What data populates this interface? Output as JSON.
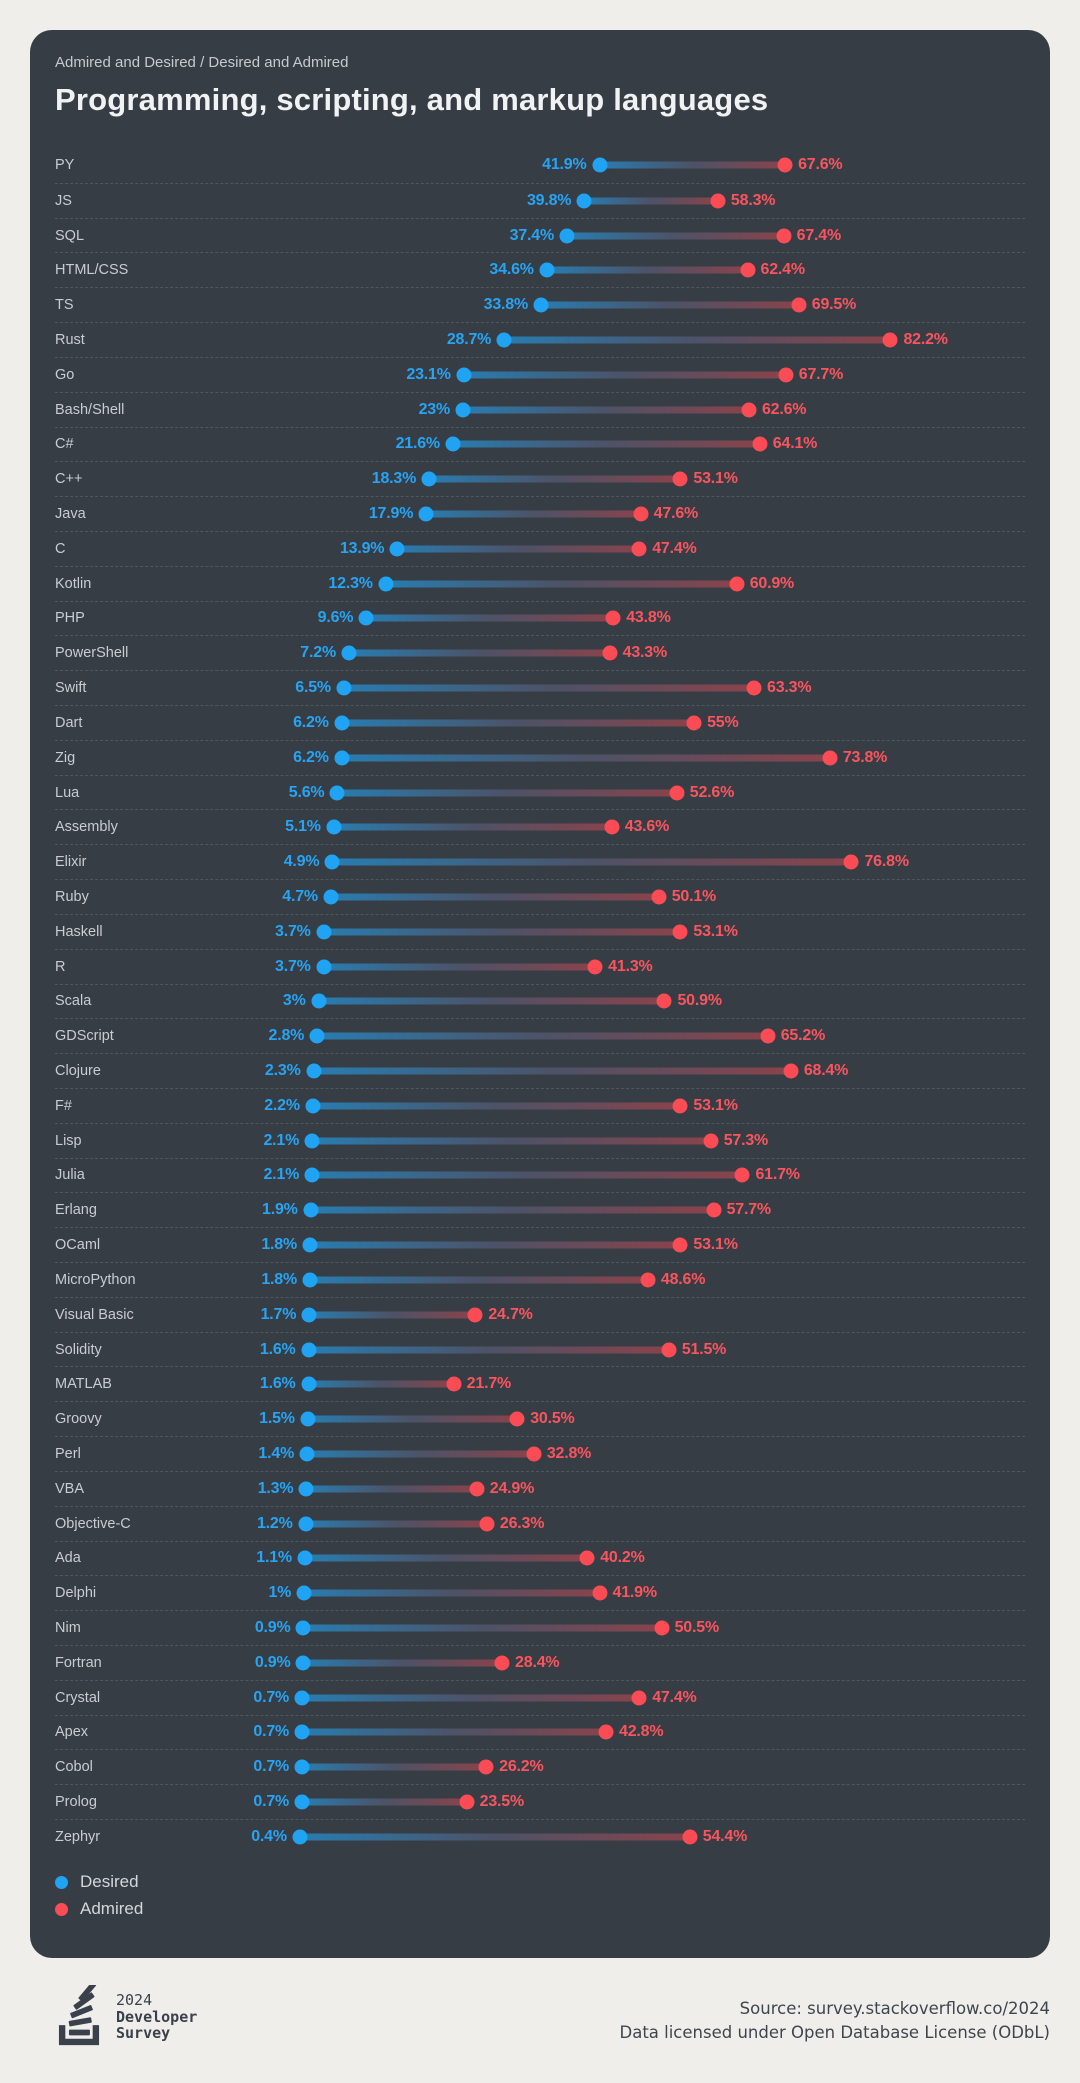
{
  "header": {
    "subtitle": "Admired and Desired / Desired and Admired",
    "title": "Programming, scripting, and markup languages"
  },
  "legend": [
    {
      "label": "Desired",
      "color": "#1fa3f2"
    },
    {
      "label": "Admired",
      "color": "#fb4b54"
    }
  ],
  "chart_data": {
    "type": "dumbbell",
    "title": "Programming, scripting, and markup languages",
    "subtitle": "Admired and Desired / Desired and Admired",
    "value_unit": "%",
    "xlim": [
      0,
      90
    ],
    "grid": "dashed row separators",
    "legend_position": "bottom-left",
    "series": [
      {
        "name": "Desired",
        "color": "#1fa3f2"
      },
      {
        "name": "Admired",
        "color": "#fb4b54"
      }
    ],
    "rows": [
      {
        "label": "PY",
        "desired": 41.9,
        "admired": 67.6,
        "desired_label": "41.9%",
        "admired_label": "67.6%"
      },
      {
        "label": "JS",
        "desired": 39.8,
        "admired": 58.3,
        "desired_label": "39.8%",
        "admired_label": "58.3%"
      },
      {
        "label": "SQL",
        "desired": 37.4,
        "admired": 67.4,
        "desired_label": "37.4%",
        "admired_label": "67.4%"
      },
      {
        "label": "HTML/CSS",
        "desired": 34.6,
        "admired": 62.4,
        "desired_label": "34.6%",
        "admired_label": "62.4%"
      },
      {
        "label": "TS",
        "desired": 33.8,
        "admired": 69.5,
        "desired_label": "33.8%",
        "admired_label": "69.5%"
      },
      {
        "label": "Rust",
        "desired": 28.7,
        "admired": 82.2,
        "desired_label": "28.7%",
        "admired_label": "82.2%"
      },
      {
        "label": "Go",
        "desired": 23.1,
        "admired": 67.7,
        "desired_label": "23.1%",
        "admired_label": "67.7%"
      },
      {
        "label": "Bash/Shell",
        "desired": 23.0,
        "admired": 62.6,
        "desired_label": "23%",
        "admired_label": "62.6%"
      },
      {
        "label": "C#",
        "desired": 21.6,
        "admired": 64.1,
        "desired_label": "21.6%",
        "admired_label": "64.1%"
      },
      {
        "label": "C++",
        "desired": 18.3,
        "admired": 53.1,
        "desired_label": "18.3%",
        "admired_label": "53.1%"
      },
      {
        "label": "Java",
        "desired": 17.9,
        "admired": 47.6,
        "desired_label": "17.9%",
        "admired_label": "47.6%"
      },
      {
        "label": "C",
        "desired": 13.9,
        "admired": 47.4,
        "desired_label": "13.9%",
        "admired_label": "47.4%"
      },
      {
        "label": "Kotlin",
        "desired": 12.3,
        "admired": 60.9,
        "desired_label": "12.3%",
        "admired_label": "60.9%"
      },
      {
        "label": "PHP",
        "desired": 9.6,
        "admired": 43.8,
        "desired_label": "9.6%",
        "admired_label": "43.8%"
      },
      {
        "label": "PowerShell",
        "desired": 7.2,
        "admired": 43.3,
        "desired_label": "7.2%",
        "admired_label": "43.3%"
      },
      {
        "label": "Swift",
        "desired": 6.5,
        "admired": 63.3,
        "desired_label": "6.5%",
        "admired_label": "63.3%"
      },
      {
        "label": "Dart",
        "desired": 6.2,
        "admired": 55.0,
        "desired_label": "6.2%",
        "admired_label": "55%"
      },
      {
        "label": "Zig",
        "desired": 6.2,
        "admired": 73.8,
        "desired_label": "6.2%",
        "admired_label": "73.8%"
      },
      {
        "label": "Lua",
        "desired": 5.6,
        "admired": 52.6,
        "desired_label": "5.6%",
        "admired_label": "52.6%"
      },
      {
        "label": "Assembly",
        "desired": 5.1,
        "admired": 43.6,
        "desired_label": "5.1%",
        "admired_label": "43.6%"
      },
      {
        "label": "Elixir",
        "desired": 4.9,
        "admired": 76.8,
        "desired_label": "4.9%",
        "admired_label": "76.8%"
      },
      {
        "label": "Ruby",
        "desired": 4.7,
        "admired": 50.1,
        "desired_label": "4.7%",
        "admired_label": "50.1%"
      },
      {
        "label": "Haskell",
        "desired": 3.7,
        "admired": 53.1,
        "desired_label": "3.7%",
        "admired_label": "53.1%"
      },
      {
        "label": "R",
        "desired": 3.7,
        "admired": 41.3,
        "desired_label": "3.7%",
        "admired_label": "41.3%"
      },
      {
        "label": "Scala",
        "desired": 3.0,
        "admired": 50.9,
        "desired_label": "3%",
        "admired_label": "50.9%"
      },
      {
        "label": "GDScript",
        "desired": 2.8,
        "admired": 65.2,
        "desired_label": "2.8%",
        "admired_label": "65.2%"
      },
      {
        "label": "Clojure",
        "desired": 2.3,
        "admired": 68.4,
        "desired_label": "2.3%",
        "admired_label": "68.4%"
      },
      {
        "label": "F#",
        "desired": 2.2,
        "admired": 53.1,
        "desired_label": "2.2%",
        "admired_label": "53.1%"
      },
      {
        "label": "Lisp",
        "desired": 2.1,
        "admired": 57.3,
        "desired_label": "2.1%",
        "admired_label": "57.3%"
      },
      {
        "label": "Julia",
        "desired": 2.1,
        "admired": 61.7,
        "desired_label": "2.1%",
        "admired_label": "61.7%"
      },
      {
        "label": "Erlang",
        "desired": 1.9,
        "admired": 57.7,
        "desired_label": "1.9%",
        "admired_label": "57.7%"
      },
      {
        "label": "OCaml",
        "desired": 1.8,
        "admired": 53.1,
        "desired_label": "1.8%",
        "admired_label": "53.1%"
      },
      {
        "label": "MicroPython",
        "desired": 1.8,
        "admired": 48.6,
        "desired_label": "1.8%",
        "admired_label": "48.6%"
      },
      {
        "label": "Visual Basic",
        "desired": 1.7,
        "admired": 24.7,
        "desired_label": "1.7%",
        "admired_label": "24.7%"
      },
      {
        "label": "Solidity",
        "desired": 1.6,
        "admired": 51.5,
        "desired_label": "1.6%",
        "admired_label": "51.5%"
      },
      {
        "label": "MATLAB",
        "desired": 1.6,
        "admired": 21.7,
        "desired_label": "1.6%",
        "admired_label": "21.7%"
      },
      {
        "label": "Groovy",
        "desired": 1.5,
        "admired": 30.5,
        "desired_label": "1.5%",
        "admired_label": "30.5%"
      },
      {
        "label": "Perl",
        "desired": 1.4,
        "admired": 32.8,
        "desired_label": "1.4%",
        "admired_label": "32.8%"
      },
      {
        "label": "VBA",
        "desired": 1.3,
        "admired": 24.9,
        "desired_label": "1.3%",
        "admired_label": "24.9%"
      },
      {
        "label": "Objective-C",
        "desired": 1.2,
        "admired": 26.3,
        "desired_label": "1.2%",
        "admired_label": "26.3%"
      },
      {
        "label": "Ada",
        "desired": 1.1,
        "admired": 40.2,
        "desired_label": "1.1%",
        "admired_label": "40.2%"
      },
      {
        "label": "Delphi",
        "desired": 1.0,
        "admired": 41.9,
        "desired_label": "1%",
        "admired_label": "41.9%"
      },
      {
        "label": "Nim",
        "desired": 0.9,
        "admired": 50.5,
        "desired_label": "0.9%",
        "admired_label": "50.5%"
      },
      {
        "label": "Fortran",
        "desired": 0.9,
        "admired": 28.4,
        "desired_label": "0.9%",
        "admired_label": "28.4%"
      },
      {
        "label": "Crystal",
        "desired": 0.7,
        "admired": 47.4,
        "desired_label": "0.7%",
        "admired_label": "47.4%"
      },
      {
        "label": "Apex",
        "desired": 0.7,
        "admired": 42.8,
        "desired_label": "0.7%",
        "admired_label": "42.8%"
      },
      {
        "label": "Cobol",
        "desired": 0.7,
        "admired": 26.2,
        "desired_label": "0.7%",
        "admired_label": "26.2%"
      },
      {
        "label": "Prolog",
        "desired": 0.7,
        "admired": 23.5,
        "desired_label": "0.7%",
        "admired_label": "23.5%"
      },
      {
        "label": "Zephyr",
        "desired": 0.4,
        "admired": 54.4,
        "desired_label": "0.4%",
        "admired_label": "54.4%"
      }
    ]
  },
  "footer": {
    "brand_year": "2024",
    "brand_line2": "Developer",
    "brand_line3": "Survey",
    "source_line1": "Source: survey.stackoverflow.co/2024",
    "source_line2": "Data licensed under Open Database License (ODbL)"
  }
}
